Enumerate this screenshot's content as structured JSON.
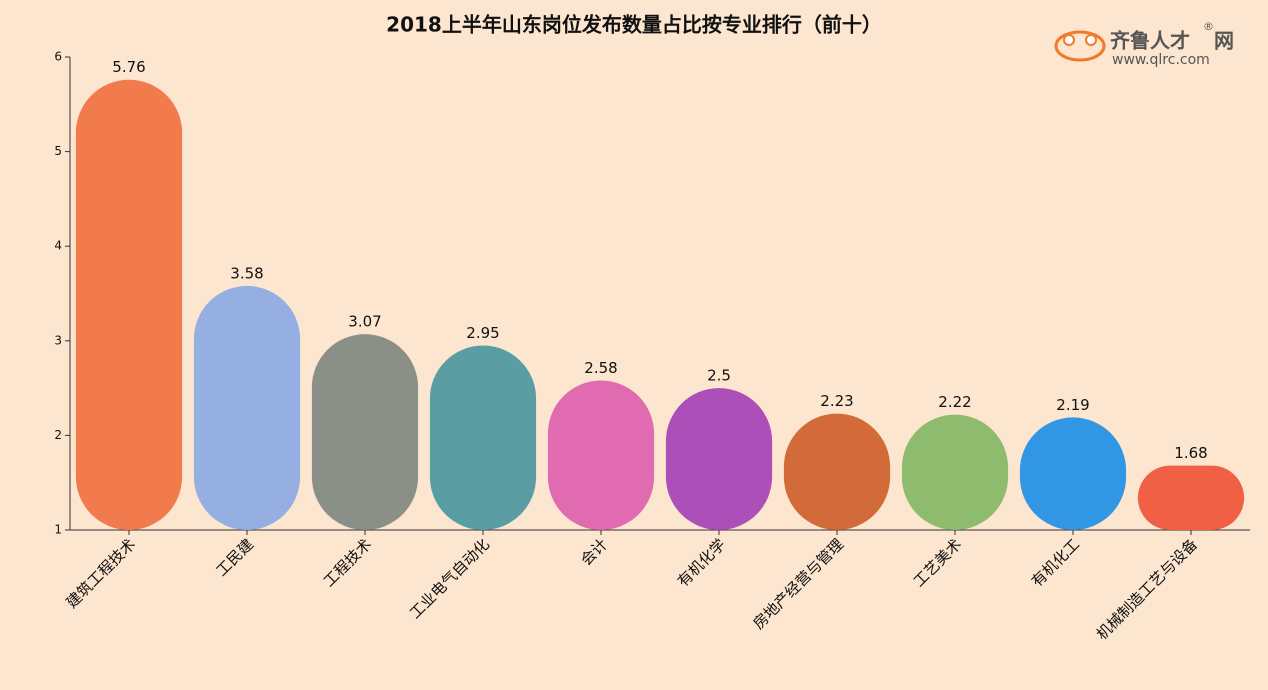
{
  "logo": {
    "name": "齐鲁人才",
    "suffix": "网",
    "mark": "®",
    "url": "www.qlrc.com"
  },
  "chart_data": {
    "type": "bar",
    "title": "2018上半年山东岗位发布数量占比按专业排行（前十）",
    "categories": [
      "建筑工程技术",
      "工民建",
      "工程技术",
      "工业电气自动化",
      "会计",
      "有机化学",
      "房地产经营与管理",
      "工艺美术",
      "有机化工",
      "机械制造工艺与设备"
    ],
    "values": [
      5.76,
      3.58,
      3.07,
      2.95,
      2.58,
      2.5,
      2.23,
      2.22,
      2.19,
      1.68
    ],
    "colors": [
      "#f27b4e",
      "#95afe3",
      "#8a8f88",
      "#5a9ea4",
      "#e06bb0",
      "#ad4fb8",
      "#d26b39",
      "#8fbb6e",
      "#3196e3",
      "#ef6045"
    ],
    "ylim": [
      1,
      6
    ],
    "yticks": [
      1,
      2,
      3,
      4,
      5,
      6
    ]
  }
}
